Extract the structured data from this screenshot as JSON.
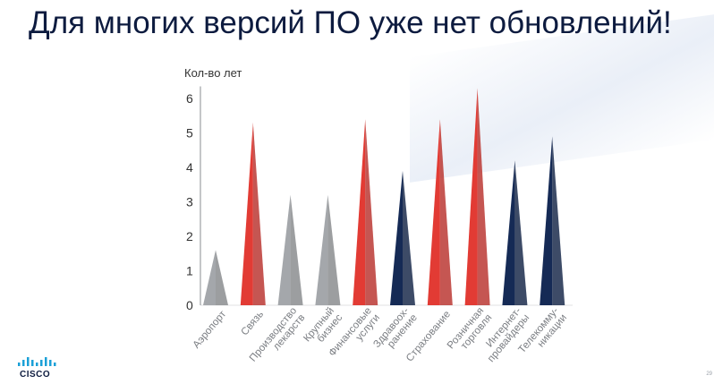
{
  "slide": {
    "title": "Для многих версий ПО уже нет обновлений!",
    "page_number": "29"
  },
  "logo": {
    "text": "CISCO"
  },
  "colors": {
    "gray": "#a4a7ab",
    "red": "#e23b34",
    "navy": "#152a55",
    "axis": "#8a8d91",
    "text": "#333333"
  },
  "chart_data": {
    "type": "bar",
    "title": "",
    "ylabel": "Кол-во лет",
    "xlabel": "",
    "ylim": [
      0,
      6.3
    ],
    "yticks": [
      0,
      1,
      2,
      3,
      4,
      5,
      6
    ],
    "grid": false,
    "categories": [
      "Аэропорт",
      "Связь",
      "Производство лекарств",
      "Крупный бизнес",
      "Финансовые услуги",
      "Здравоох-ранение",
      "Страхование",
      "Розничная торговля",
      "Интернет-провайдеры",
      "Телекоммуникации"
    ],
    "category_lines": [
      [
        "Аэропорт"
      ],
      [
        "Связь"
      ],
      [
        "Производство",
        "лекарств"
      ],
      [
        "Крупный",
        "бизнес"
      ],
      [
        "Финансовые",
        "услуги"
      ],
      [
        "Здравоох-",
        "ранение"
      ],
      [
        "Страхование"
      ],
      [
        "Розничная",
        "торговля"
      ],
      [
        "Интернет-",
        "провайдеры"
      ],
      [
        "Телекомму-",
        "никации"
      ]
    ],
    "values": [
      1.6,
      5.3,
      3.2,
      3.2,
      5.4,
      3.9,
      5.4,
      6.3,
      4.2,
      4.9
    ],
    "bar_colors": [
      "gray",
      "red",
      "gray",
      "gray",
      "red",
      "navy",
      "red",
      "red",
      "navy",
      "navy"
    ]
  }
}
